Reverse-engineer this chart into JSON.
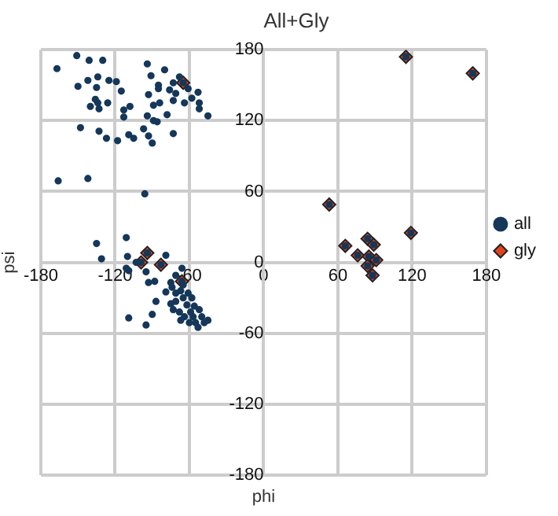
{
  "chart_data": {
    "type": "scatter",
    "title": "All+Gly",
    "xlabel": "phi",
    "ylabel": "psi",
    "xlim": [
      -180,
      180
    ],
    "xticks": [
      -180,
      -120,
      -60,
      0,
      60,
      120,
      180
    ],
    "ylim": [
      -180,
      180
    ],
    "yticks": [
      -180,
      -120,
      -60,
      0,
      60,
      120,
      180
    ],
    "grid": true,
    "legend": "right",
    "series": [
      {
        "name": "all",
        "color": "#15375a",
        "marker": "circle",
        "x": [
          -151,
          -141,
          -130,
          -167,
          -94,
          -80,
          -91,
          -134,
          -142,
          -125,
          -119,
          -150,
          -135,
          -85,
          -85,
          -73,
          -76,
          -115,
          -93,
          -71,
          -53,
          -136,
          -134,
          -140,
          -126,
          -133,
          -84,
          -89,
          -73,
          -64,
          -58,
          -52,
          -52,
          -45,
          -108,
          -113,
          -113,
          -94,
          -78,
          -89,
          -86,
          -148,
          -133,
          -97,
          -109,
          -93,
          -127,
          -118,
          -105,
          -90,
          -73,
          -166,
          -142,
          -96,
          -68,
          -61,
          -135,
          -111,
          -131,
          -110,
          -111,
          -109,
          -103,
          -79,
          -93,
          -88,
          -95,
          -71,
          -66,
          -75,
          -74,
          -79,
          -87,
          -109,
          -90,
          -95,
          -67,
          -65,
          -71,
          -73,
          -68,
          -62,
          -59,
          -64,
          -57,
          -52,
          -50,
          -55,
          -48,
          -60,
          -53,
          -67,
          -65,
          -61,
          -71,
          -75,
          -58,
          -56,
          -45,
          115,
          169,
          53,
          119,
          66,
          76,
          84,
          89,
          85,
          91,
          84,
          88,
          -94,
          -99,
          -83,
          -66,
          -65
        ],
        "values": [
          175,
          171,
          171,
          164,
          168,
          163,
          158,
          157,
          154,
          154,
          153,
          149,
          148,
          150,
          147,
          152,
          146,
          145,
          142,
          143,
          144,
          138,
          135,
          132,
          135,
          130,
          135,
          133,
          137,
          135,
          139,
          135,
          130,
          124,
          132,
          129,
          123,
          124,
          125,
          120,
          119,
          114,
          111,
          113,
          108,
          107,
          105,
          103,
          105,
          101,
          109,
          69,
          71,
          58,
          157,
          147,
          16,
          21,
          3,
          5,
          -5,
          -7,
          0,
          6,
          -17,
          -16,
          -8,
          -11,
          -5,
          -17,
          -21,
          -25,
          -33,
          -47,
          -44,
          -53,
          -24,
          -30,
          -33,
          -40,
          -42,
          -36,
          -42,
          -46,
          -46,
          -40,
          -46,
          -51,
          -51,
          -51,
          -55,
          -49,
          -19,
          -26,
          -26,
          -35,
          -30,
          -37,
          -49,
          174,
          160,
          49,
          25,
          14,
          6,
          20,
          15,
          5,
          2,
          -3,
          -11,
          8,
          0,
          -2,
          -16,
          152
        ]
      },
      {
        "name": "gly",
        "color": "#e0441c",
        "marker": "diamond",
        "x": [
          115,
          169,
          53,
          119,
          66,
          76,
          84,
          89,
          85,
          91,
          84,
          88,
          -94,
          -99,
          -83,
          -66,
          -65
        ],
        "values": [
          174,
          160,
          49,
          25,
          14,
          6,
          20,
          15,
          5,
          2,
          -3,
          -11,
          8,
          0,
          -2,
          -16,
          152
        ]
      }
    ]
  }
}
